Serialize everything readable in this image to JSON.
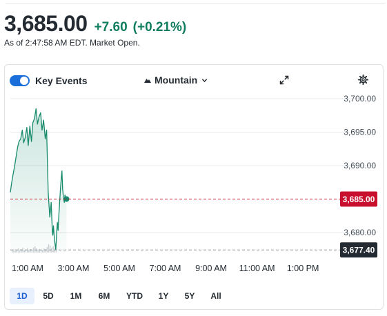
{
  "quote": {
    "price": "3,685.00",
    "change": "+7.60",
    "change_pct": "(+0.21%)",
    "as_of": "As of 2:47:58 AM EDT. Market Open."
  },
  "toolbar": {
    "key_events_label": "Key Events",
    "key_events_on": true,
    "chart_type_label": "Mountain",
    "icons": [
      "mountain-icon",
      "chevron-down-icon",
      "expand-icon",
      "gear-icon"
    ]
  },
  "ranges": {
    "items": [
      "1D",
      "5D",
      "1M",
      "6M",
      "YTD",
      "1Y",
      "5Y",
      "All"
    ],
    "active": "1D"
  },
  "colors": {
    "up": "#0f7d5e",
    "line": "#168a6a",
    "current_badge": "#c8102e",
    "prev_close_badge": "#232a31",
    "toggle": "#1a6fdb"
  },
  "chart_data": {
    "type": "area",
    "x_tick_labels": [
      "1:00 AM",
      "3:00 AM",
      "5:00 AM",
      "7:00 AM",
      "9:00 AM",
      "11:00 AM",
      "1:00 PM"
    ],
    "y_tick_labels": [
      "3,700.00",
      "3,695.00",
      "3,690.00",
      "3,680.00"
    ],
    "ylim": [
      3676,
      3701
    ],
    "x_hours_range": [
      0.25,
      14.5
    ],
    "current_price": 3685.0,
    "current_price_label": "3,685.00",
    "previous_close": 3677.4,
    "previous_close_label": "3,677.40",
    "series": [
      {
        "hours": [
          0.25,
          0.3,
          0.37,
          0.43,
          0.5,
          0.57,
          0.63,
          0.7,
          0.77,
          0.83,
          0.9,
          0.97,
          1.03,
          1.1,
          1.17,
          1.23,
          1.3,
          1.37,
          1.43,
          1.5,
          1.57,
          1.63,
          1.7,
          1.77,
          1.83,
          1.9,
          1.97,
          2.03,
          2.08,
          2.1,
          2.13,
          2.17,
          2.2,
          2.23,
          2.27,
          2.3,
          2.33,
          2.37,
          2.4,
          2.43,
          2.47,
          2.5,
          2.53,
          2.57,
          2.6,
          2.63,
          2.67,
          2.7
        ],
        "values": [
          3686.0,
          3687.3,
          3688.7,
          3689.8,
          3691.3,
          3692.8,
          3693.6,
          3694.0,
          3695.3,
          3693.4,
          3694.2,
          3695.7,
          3693.0,
          3695.9,
          3693.6,
          3696.4,
          3697.0,
          3698.5,
          3696.2,
          3697.3,
          3697.9,
          3695.3,
          3696.8,
          3694.0,
          3695.3,
          3685.9,
          3682.3,
          3684.5,
          3680.1,
          3679.6,
          3681.0,
          3679.0,
          3678.2,
          3677.4,
          3680.1,
          3681.5,
          3680.3,
          3682.9,
          3684.6,
          3686.3,
          3688.1,
          3689.2,
          3686.5,
          3685.0,
          3684.5,
          3685.6,
          3685.1,
          3685.0
        ]
      }
    ],
    "volume_hint": "faint volume bars near bottom",
    "grid": true
  }
}
